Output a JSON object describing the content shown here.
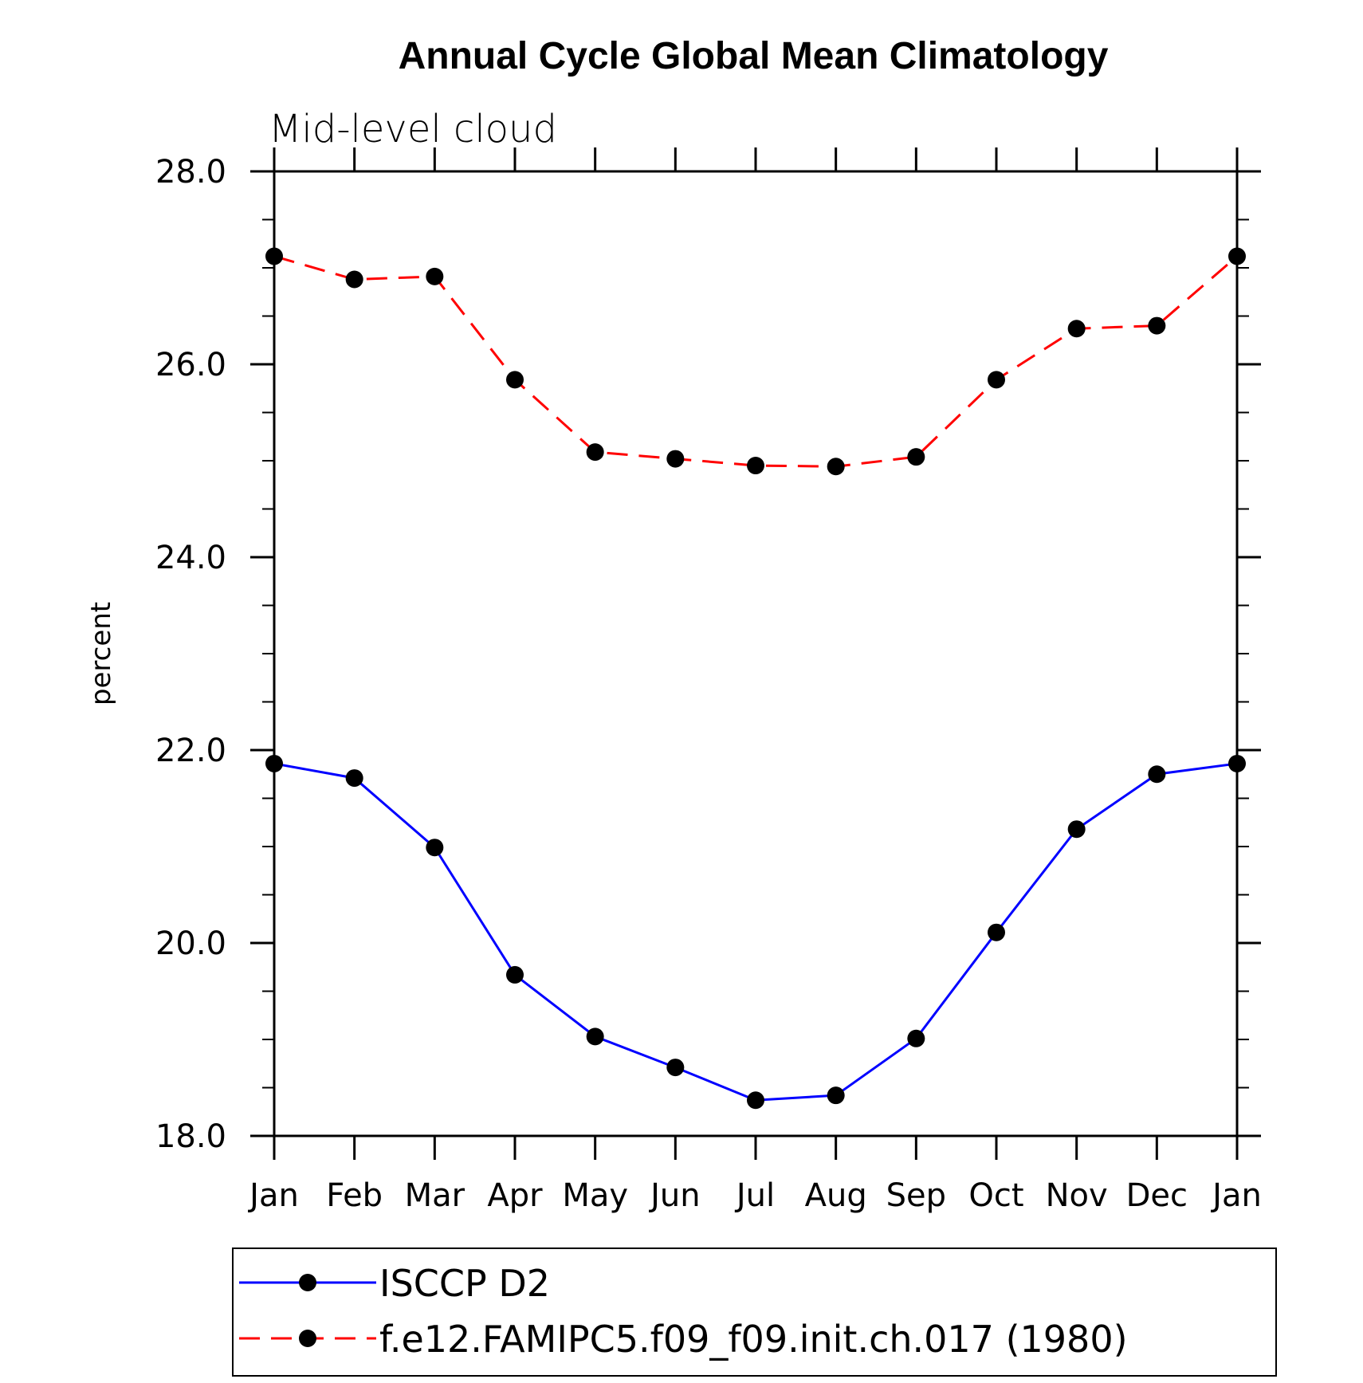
{
  "chart_data": {
    "type": "line",
    "title": "Annual Cycle Global Mean Climatology",
    "subtitle": "Mid-level cloud",
    "ylabel": "percent",
    "xlabel": "",
    "categories": [
      "Jan",
      "Feb",
      "Mar",
      "Apr",
      "May",
      "Jun",
      "Jul",
      "Aug",
      "Sep",
      "Oct",
      "Nov",
      "Dec",
      "Jan"
    ],
    "ylim": [
      18.0,
      28.0
    ],
    "yticks": [
      "18.0",
      "20.0",
      "22.0",
      "24.0",
      "26.0",
      "28.0"
    ],
    "series": [
      {
        "name": "ISCCP D2",
        "color": "#0000ff",
        "dash": "solid",
        "marker": "filled-circle",
        "values": [
          21.86,
          21.71,
          20.99,
          19.67,
          19.03,
          18.71,
          18.37,
          18.42,
          19.01,
          20.11,
          21.18,
          21.75,
          21.86
        ]
      },
      {
        "name": "f.e12.FAMIPC5.f09_f09.init.ch.017 (1980)",
        "color": "#ff0000",
        "dash": "dashed",
        "marker": "filled-circle",
        "values": [
          27.12,
          26.88,
          26.91,
          25.84,
          25.09,
          25.02,
          24.95,
          24.94,
          25.04,
          25.84,
          26.37,
          26.4,
          27.12
        ]
      }
    ],
    "grid": false,
    "legend_position": "bottom"
  }
}
